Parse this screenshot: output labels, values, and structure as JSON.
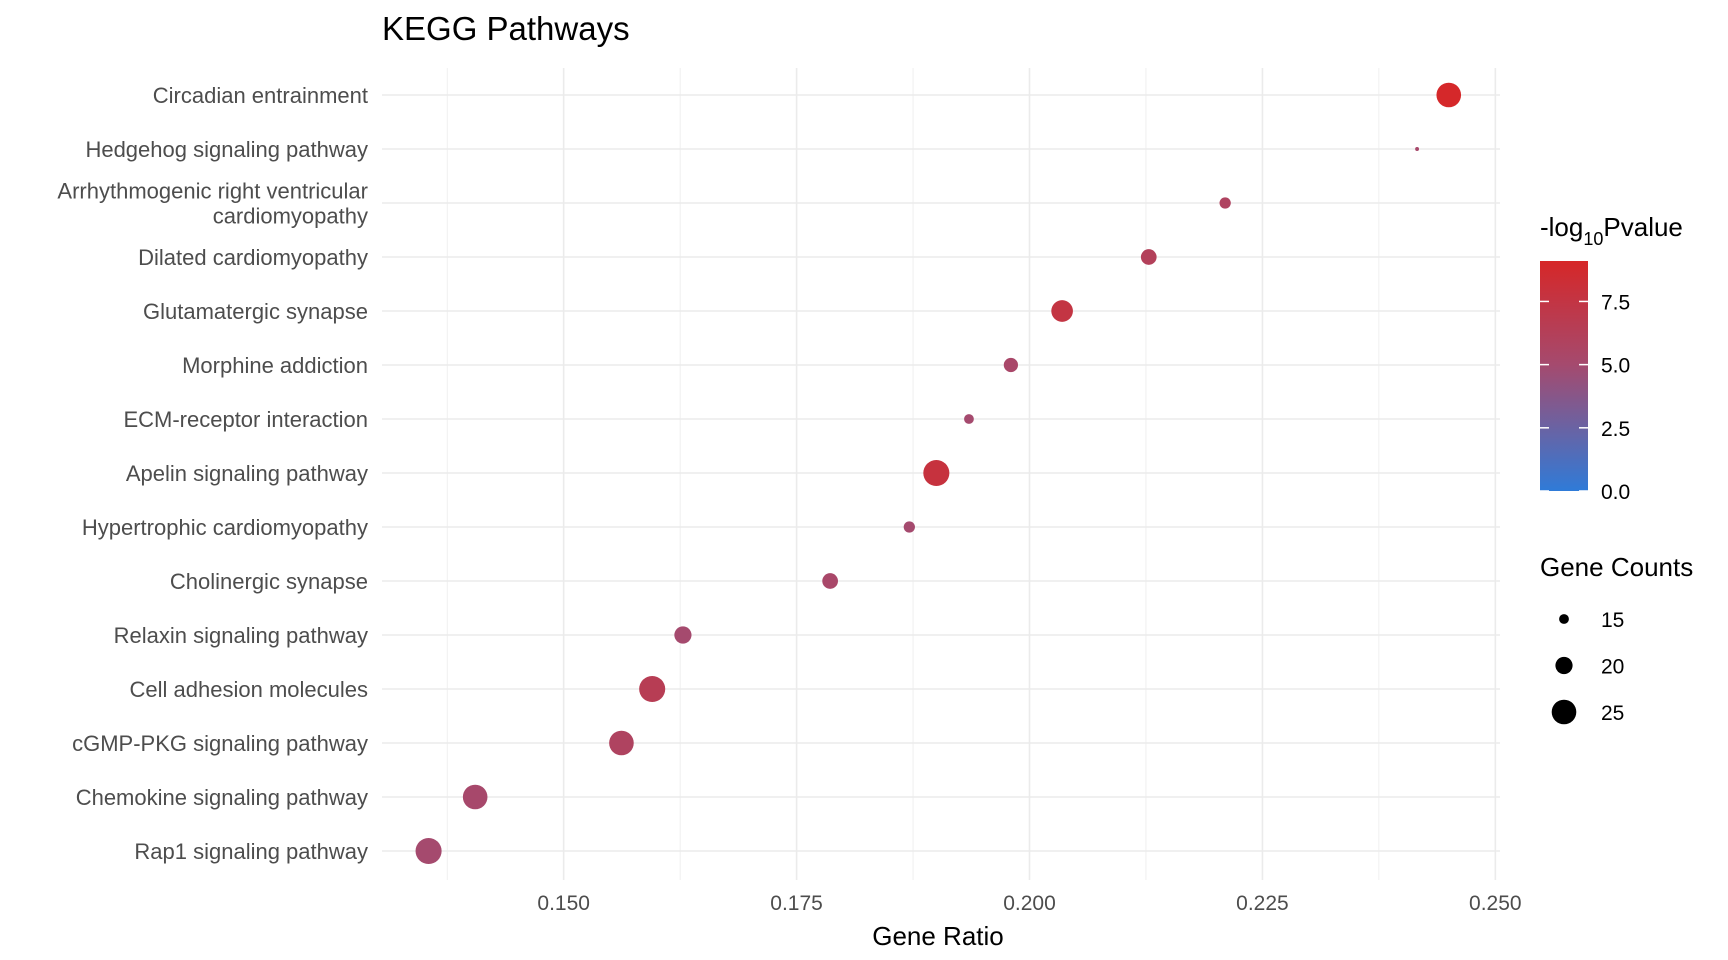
{
  "chart_data": {
    "type": "scatter",
    "title": "KEGG Pathways",
    "xlabel": "Gene Ratio",
    "ylabel": "",
    "xlim": [
      0.1305,
      0.2505
    ],
    "xticks": [
      0.15,
      0.175,
      0.2,
      0.225,
      0.25
    ],
    "xtick_labels": [
      "0.150",
      "0.175",
      "0.200",
      "0.225",
      "0.250"
    ],
    "grid": true,
    "legend_position": "right",
    "categories": [
      "Rap1 signaling pathway",
      "Chemokine signaling pathway",
      "cGMP-PKG signaling pathway",
      "Cell adhesion molecules",
      "Relaxin signaling pathway",
      "Cholinergic synapse",
      "Hypertrophic cardiomyopathy",
      "Apelin signaling pathway",
      "ECM-receptor interaction",
      "Morphine addiction",
      "Glutamatergic synapse",
      "Dilated cardiomyopathy",
      "Arrhythmogenic right ventricular cardiomyopathy",
      "Hedgehog signaling pathway",
      "Circadian entrainment"
    ],
    "category_labels": [
      [
        "Rap1 signaling pathway"
      ],
      [
        "Chemokine signaling pathway"
      ],
      [
        "cGMP-PKG signaling pathway"
      ],
      [
        "Cell adhesion molecules"
      ],
      [
        "Relaxin signaling pathway"
      ],
      [
        "Cholinergic synapse"
      ],
      [
        "Hypertrophic cardiomyopathy"
      ],
      [
        "Apelin signaling pathway"
      ],
      [
        "ECM-receptor interaction"
      ],
      [
        "Morphine addiction"
      ],
      [
        "Glutamatergic synapse"
      ],
      [
        "Dilated cardiomyopathy"
      ],
      [
        "Arrhythmogenic right ventricular",
        "cardiomyopathy"
      ],
      [
        "Hedgehog signaling pathway"
      ],
      [
        "Circadian entrainment"
      ]
    ],
    "points": [
      {
        "pathway": "Rap1 signaling pathway",
        "gene_ratio": 0.1355,
        "gene_counts": 26,
        "neg_log10_pvalue": 5.0
      },
      {
        "pathway": "Chemokine signaling pathway",
        "gene_ratio": 0.1405,
        "gene_counts": 25,
        "neg_log10_pvalue": 5.2
      },
      {
        "pathway": "cGMP-PKG signaling pathway",
        "gene_ratio": 0.1562,
        "gene_counts": 25,
        "neg_log10_pvalue": 5.8
      },
      {
        "pathway": "Cell adhesion molecules",
        "gene_ratio": 0.1595,
        "gene_counts": 26,
        "neg_log10_pvalue": 6.5
      },
      {
        "pathway": "Relaxin signaling pathway",
        "gene_ratio": 0.1628,
        "gene_counts": 20,
        "neg_log10_pvalue": 5.0
      },
      {
        "pathway": "Cholinergic synapse",
        "gene_ratio": 0.1786,
        "gene_counts": 19,
        "neg_log10_pvalue": 5.3
      },
      {
        "pathway": "Hypertrophic cardiomyopathy",
        "gene_ratio": 0.1871,
        "gene_counts": 16,
        "neg_log10_pvalue": 5.0
      },
      {
        "pathway": "Apelin signaling pathway",
        "gene_ratio": 0.19,
        "gene_counts": 26,
        "neg_log10_pvalue": 7.8
      },
      {
        "pathway": "ECM-receptor interaction",
        "gene_ratio": 0.1935,
        "gene_counts": 15,
        "neg_log10_pvalue": 5.0
      },
      {
        "pathway": "Morphine addiction",
        "gene_ratio": 0.198,
        "gene_counts": 18,
        "neg_log10_pvalue": 5.3
      },
      {
        "pathway": "Glutamatergic synapse",
        "gene_ratio": 0.2035,
        "gene_counts": 23,
        "neg_log10_pvalue": 7.5
      },
      {
        "pathway": "Dilated cardiomyopathy",
        "gene_ratio": 0.2128,
        "gene_counts": 19,
        "neg_log10_pvalue": 6.2
      },
      {
        "pathway": "Arrhythmogenic right ventricular cardiomyopathy",
        "gene_ratio": 0.221,
        "gene_counts": 16,
        "neg_log10_pvalue": 5.8
      },
      {
        "pathway": "Hedgehog signaling pathway",
        "gene_ratio": 0.2416,
        "gene_counts": 11,
        "neg_log10_pvalue": 5.2
      },
      {
        "pathway": "Circadian entrainment",
        "gene_ratio": 0.245,
        "gene_counts": 25,
        "neg_log10_pvalue": 9.0
      }
    ],
    "color_legend": {
      "title_main": "-log",
      "title_sub": "10",
      "title_tail": "Pvalue",
      "range": [
        0,
        9.1
      ],
      "ticks": [
        0,
        2.5,
        5,
        7.5
      ],
      "tick_labels": [
        "0.0",
        "2.5",
        "5.0",
        "7.5"
      ],
      "colors": {
        "low": "#2f7bd8",
        "mid": "#a54a6e",
        "high": "#d62728"
      }
    },
    "size_legend": {
      "title": "Gene Counts",
      "values": [
        15,
        20,
        25
      ],
      "labels": [
        "15",
        "20",
        "25"
      ]
    }
  }
}
